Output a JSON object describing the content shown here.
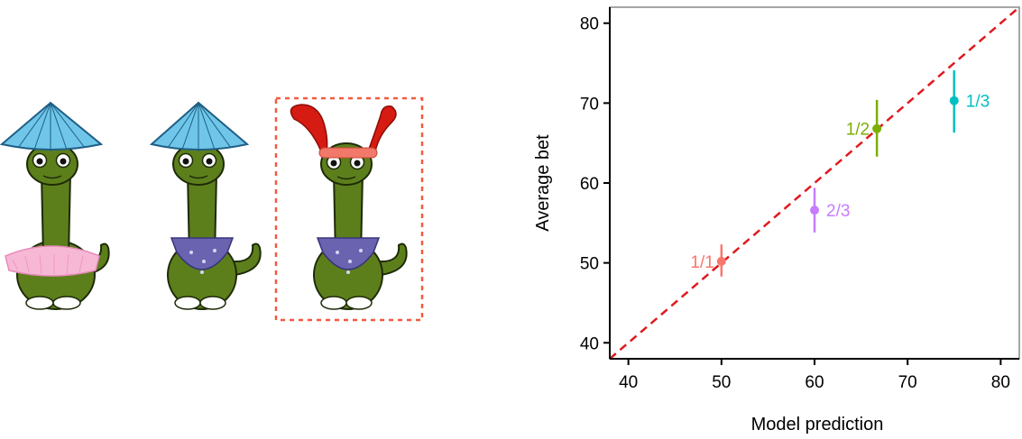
{
  "illustration": {
    "characters": [
      {
        "name": "dino-with-hat-and-tutu",
        "hat": "conical-hat",
        "outfit": "pink-tutu"
      },
      {
        "name": "dino-with-hat-and-bandana",
        "hat": "conical-hat",
        "outfit": "blue-bandana"
      },
      {
        "name": "dino-with-feathers-and-bandana",
        "hat": "red-feather-headband",
        "outfit": "blue-bandana",
        "highlighted": true
      }
    ],
    "highlight_color": "#f15a40"
  },
  "chart_data": {
    "type": "scatter",
    "xlabel": "Model prediction",
    "ylabel": "Average bet",
    "xlim": [
      38,
      82
    ],
    "ylim": [
      38,
      82
    ],
    "xticks": [
      40,
      50,
      60,
      70,
      80
    ],
    "yticks": [
      40,
      50,
      60,
      70,
      80
    ],
    "grid": false,
    "reference_line": {
      "style": "dashed",
      "color": "#e0191f",
      "from": [
        38,
        38
      ],
      "to": [
        82,
        82
      ]
    },
    "points": [
      {
        "label": "1/1",
        "x": 50.0,
        "y": 50.2,
        "err_low": 48.3,
        "err_high": 52.3,
        "color": "#f8766d",
        "label_side": "left"
      },
      {
        "label": "2/3",
        "x": 60.0,
        "y": 56.6,
        "err_low": 53.8,
        "err_high": 59.4,
        "color": "#c77cff",
        "label_side": "right"
      },
      {
        "label": "1/2",
        "x": 66.7,
        "y": 66.8,
        "err_low": 63.3,
        "err_high": 70.4,
        "color": "#7cae00",
        "label_side": "left"
      },
      {
        "label": "1/3",
        "x": 75.0,
        "y": 70.3,
        "err_low": 66.3,
        "err_high": 74.1,
        "color": "#00bfc4",
        "label_side": "right"
      }
    ]
  }
}
